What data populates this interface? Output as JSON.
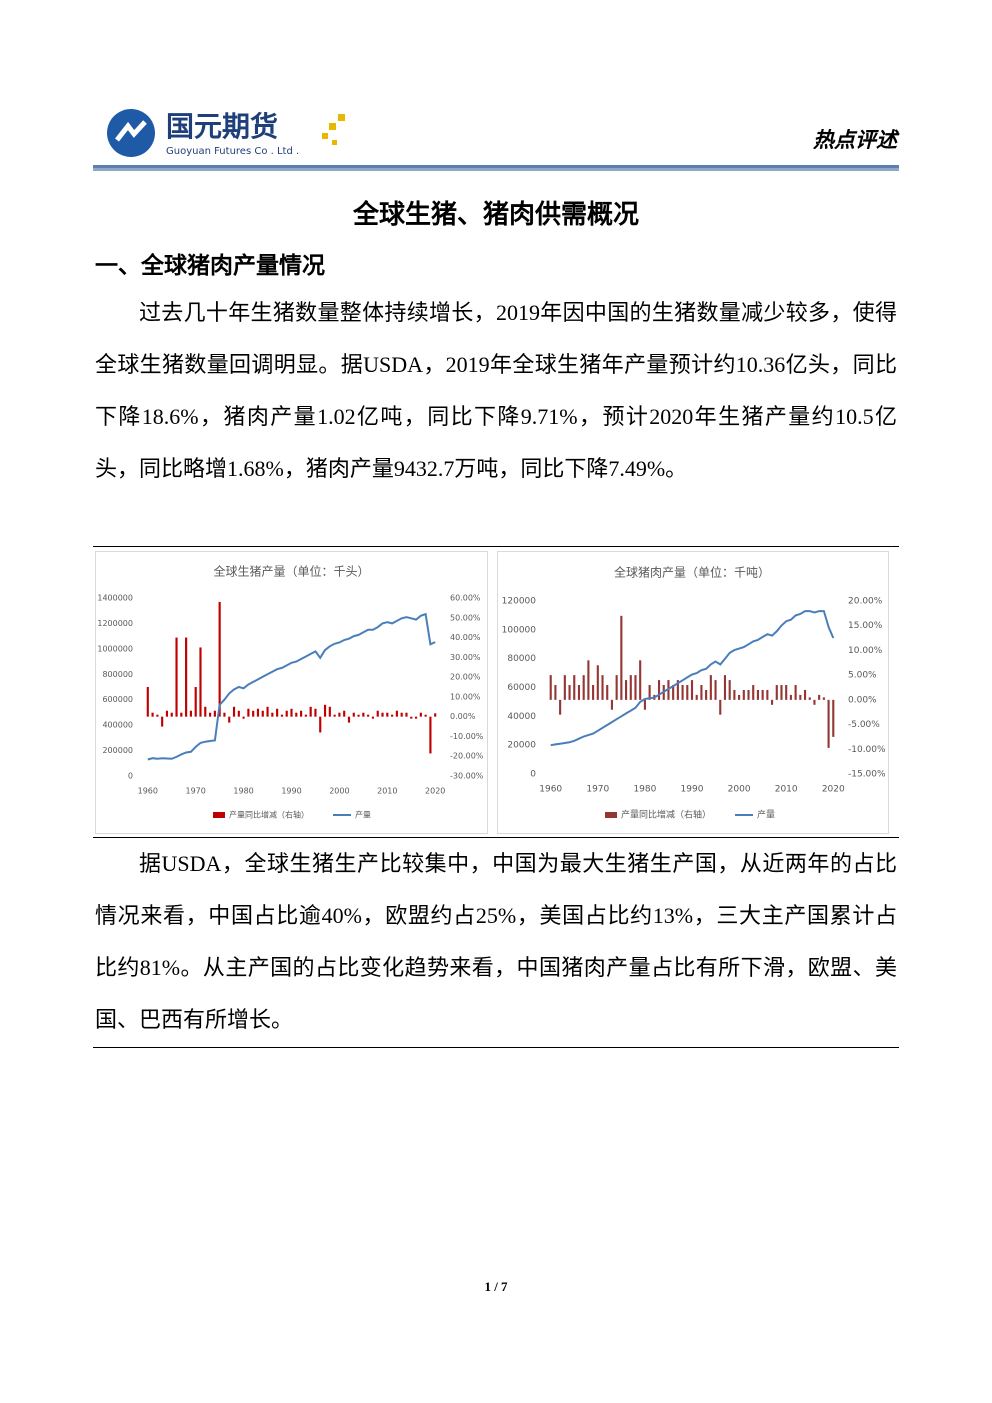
{
  "header": {
    "company": "国元期货",
    "company_en": "Guoyuan Futures Co . Ltd .",
    "column": "热点评述"
  },
  "title": "全球生猪、猪肉供需概况",
  "section": "一、全球猪肉产量情况",
  "paragraphs": [
    "过去几十年生猪数量整体持续增长，2019年因中国的生猪数量减少较多，使得全球生猪数量回调明显。据USDA，2019年全球生猪年产量预计约10.36亿头，同比下降18.6%，猪肉产量1.02亿吨，同比下降9.71%，预计2020年生猪产量约10.5亿头，同比略增1.68%，猪肉产量9432.7万吨，同比下降7.49%。",
    "据USDA，全球生猪生产比较集中，中国为最大生猪生产国，从近两年的占比情况来看，中国占比逾40%，欧盟约占25%，美国占比约13%，三大主产国累计占比约81%。从主产国的占比变化趋势来看，中国猪肉产量占比有所下滑，欧盟、美国、巴西有所增长。"
  ],
  "chart_data": [
    {
      "type": "combo",
      "title": "全球生猪产量（单位：千头）",
      "x": [
        1960,
        1961,
        1962,
        1963,
        1964,
        1965,
        1966,
        1967,
        1968,
        1969,
        1970,
        1971,
        1972,
        1973,
        1974,
        1975,
        1976,
        1977,
        1978,
        1979,
        1980,
        1981,
        1982,
        1983,
        1984,
        1985,
        1986,
        1987,
        1988,
        1989,
        1990,
        1991,
        1992,
        1993,
        1994,
        1995,
        1996,
        1997,
        1998,
        1999,
        2000,
        2001,
        2002,
        2003,
        2004,
        2005,
        2006,
        2007,
        2008,
        2009,
        2010,
        2011,
        2012,
        2013,
        2014,
        2015,
        2016,
        2017,
        2018,
        2019,
        2020
      ],
      "xlim": [
        1959,
        2021
      ],
      "xticks": [
        1960,
        1970,
        1980,
        1990,
        2000,
        2010,
        2020
      ],
      "ylim": [
        0,
        1400000
      ],
      "yticks": [
        0,
        200000,
        400000,
        600000,
        800000,
        1000000,
        1200000,
        1400000
      ],
      "y2lim": [
        -30,
        60
      ],
      "y2ticks": [
        {
          "value": -30,
          "label": "-30.00%"
        },
        {
          "value": -20,
          "label": "-20.00%"
        },
        {
          "value": -10,
          "label": "-10.00%"
        },
        {
          "value": 0,
          "label": "0.00%"
        },
        {
          "value": 10,
          "label": "10.00%"
        },
        {
          "value": 20,
          "label": "20.00%"
        },
        {
          "value": 30,
          "label": "30.00%"
        },
        {
          "value": 40,
          "label": "40.00%"
        },
        {
          "value": 50,
          "label": "50.00%"
        },
        {
          "value": 60,
          "label": "60.00%"
        }
      ],
      "series": [
        {
          "name": "产量同比增减（右轴）",
          "type": "bar",
          "axis": "y2",
          "color": "#c00000",
          "values": [
            15,
            2,
            1,
            -5,
            3,
            2,
            40,
            2,
            40,
            3,
            15,
            35,
            5,
            2,
            3,
            58,
            2,
            -3,
            5,
            3,
            -1,
            4,
            3,
            4,
            3,
            5,
            2,
            4,
            1,
            3,
            4,
            2,
            3,
            1,
            5,
            4,
            -8,
            6,
            5,
            1,
            2,
            3,
            -3,
            2,
            1,
            2,
            1,
            -1,
            3,
            2,
            2,
            1,
            3,
            2,
            2,
            -1,
            -1,
            2,
            1,
            -18.6,
            1.68
          ]
        },
        {
          "name": "产量",
          "type": "line",
          "color": "#4a7ebb",
          "values": [
            130000,
            140000,
            135000,
            140000,
            138000,
            135000,
            150000,
            170000,
            185000,
            190000,
            230000,
            260000,
            270000,
            275000,
            280000,
            560000,
            600000,
            650000,
            680000,
            700000,
            690000,
            720000,
            740000,
            760000,
            780000,
            800000,
            820000,
            840000,
            850000,
            870000,
            890000,
            900000,
            920000,
            940000,
            960000,
            980000,
            930000,
            990000,
            1020000,
            1040000,
            1050000,
            1070000,
            1080000,
            1100000,
            1110000,
            1130000,
            1150000,
            1150000,
            1170000,
            1200000,
            1210000,
            1200000,
            1220000,
            1240000,
            1250000,
            1240000,
            1230000,
            1260000,
            1273000,
            1036000,
            1053000
          ]
        }
      ]
    },
    {
      "type": "combo",
      "title": "全球猪肉产量（单位：千吨）",
      "x": [
        1960,
        1961,
        1962,
        1963,
        1964,
        1965,
        1966,
        1967,
        1968,
        1969,
        1970,
        1971,
        1972,
        1973,
        1974,
        1975,
        1976,
        1977,
        1978,
        1979,
        1980,
        1981,
        1982,
        1983,
        1984,
        1985,
        1986,
        1987,
        1988,
        1989,
        1990,
        1991,
        1992,
        1993,
        1994,
        1995,
        1996,
        1997,
        1998,
        1999,
        2000,
        2001,
        2002,
        2003,
        2004,
        2005,
        2006,
        2007,
        2008,
        2009,
        2010,
        2011,
        2012,
        2013,
        2014,
        2015,
        2016,
        2017,
        2018,
        2019,
        2020
      ],
      "xlim": [
        1959,
        2021
      ],
      "xticks": [
        1960,
        1970,
        1980,
        1990,
        2000,
        2010,
        2020
      ],
      "ylim": [
        0,
        120000
      ],
      "yticks": [
        0,
        20000,
        40000,
        60000,
        80000,
        100000,
        120000
      ],
      "y2lim": [
        -15,
        20
      ],
      "y2ticks": [
        {
          "value": -15,
          "label": "-15.00%"
        },
        {
          "value": -10,
          "label": "-10.00%"
        },
        {
          "value": -5,
          "label": "-5.00%"
        },
        {
          "value": 0,
          "label": "0.00%"
        },
        {
          "value": 5,
          "label": "5.00%"
        },
        {
          "value": 10,
          "label": "10.00%"
        },
        {
          "value": 15,
          "label": "15.00%"
        },
        {
          "value": 20,
          "label": "20.00%"
        }
      ],
      "series": [
        {
          "name": "产量同比增减（右轴）",
          "type": "bar",
          "axis": "y2",
          "color": "#943634",
          "values": [
            5,
            3,
            -3,
            5,
            3,
            5,
            3,
            5,
            8,
            3,
            7,
            5,
            3,
            -2,
            5,
            17,
            4,
            5,
            5,
            8,
            -2,
            3,
            1,
            4,
            3,
            4,
            3,
            4,
            3,
            3,
            4,
            1,
            3,
            2,
            5,
            4,
            -3,
            5,
            4,
            2,
            1,
            2,
            2,
            3,
            2,
            2,
            2,
            -1,
            3,
            3,
            3,
            1,
            3,
            1,
            2,
            0.5,
            -1,
            1,
            0.5,
            -9.71,
            -7.49
          ]
        },
        {
          "name": "产量",
          "type": "line",
          "color": "#4a7ebb",
          "values": [
            20000,
            20500,
            21000,
            21500,
            22000,
            23000,
            24500,
            26000,
            27000,
            28000,
            30000,
            32000,
            34000,
            36000,
            38000,
            40000,
            42000,
            44000,
            46000,
            50000,
            52000,
            52500,
            53000,
            55000,
            57000,
            59000,
            61000,
            63000,
            65000,
            67000,
            69000,
            70000,
            72000,
            73000,
            76000,
            78000,
            76000,
            80000,
            84000,
            86000,
            87000,
            88000,
            90000,
            92000,
            93000,
            95000,
            97000,
            96000,
            99000,
            103000,
            106000,
            107000,
            110000,
            111000,
            113000,
            113000,
            112000,
            113000,
            113000,
            102000,
            94327
          ]
        }
      ]
    }
  ],
  "footer": {
    "page": "1 / 7"
  }
}
